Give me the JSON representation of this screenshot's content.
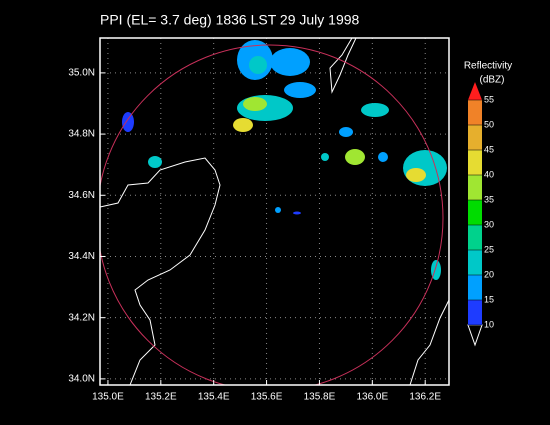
{
  "chart_data": {
    "type": "map",
    "title": "PPI (EL= 3.7 deg)    1836 LST 29 July 1998",
    "xlim": [
      134.97,
      136.29
    ],
    "ylim": [
      33.98,
      35.114
    ],
    "xticks": [
      {
        "value": 135.0,
        "label": "135.0E"
      },
      {
        "value": 135.2,
        "label": "135.2E"
      },
      {
        "value": 135.4,
        "label": "135.4E"
      },
      {
        "value": 135.6,
        "label": "135.6E"
      },
      {
        "value": 135.8,
        "label": "135.8E"
      },
      {
        "value": 136.0,
        "label": "136.0E"
      },
      {
        "value": 136.2,
        "label": "136.2E"
      }
    ],
    "yticks": [
      {
        "value": 34.0,
        "label": "34.0N"
      },
      {
        "value": 34.2,
        "label": "34.2N"
      },
      {
        "value": 34.4,
        "label": "34.4N"
      },
      {
        "value": 34.6,
        "label": "34.6N"
      },
      {
        "value": 34.8,
        "label": "34.8N"
      },
      {
        "value": 35.0,
        "label": "35.0N"
      }
    ],
    "grid": true,
    "colorbar": {
      "title": "Reflectivity",
      "unit_label": "(dBZ)",
      "ticks": [
        10,
        15,
        20,
        25,
        30,
        35,
        40,
        45,
        50,
        55
      ],
      "colors": [
        "#1e3cff",
        "#00a0ff",
        "#00c8c8",
        "#00d28c",
        "#00dc00",
        "#a0e632",
        "#e6dc32",
        "#e6af2d",
        "#f08228"
      ]
    }
  }
}
